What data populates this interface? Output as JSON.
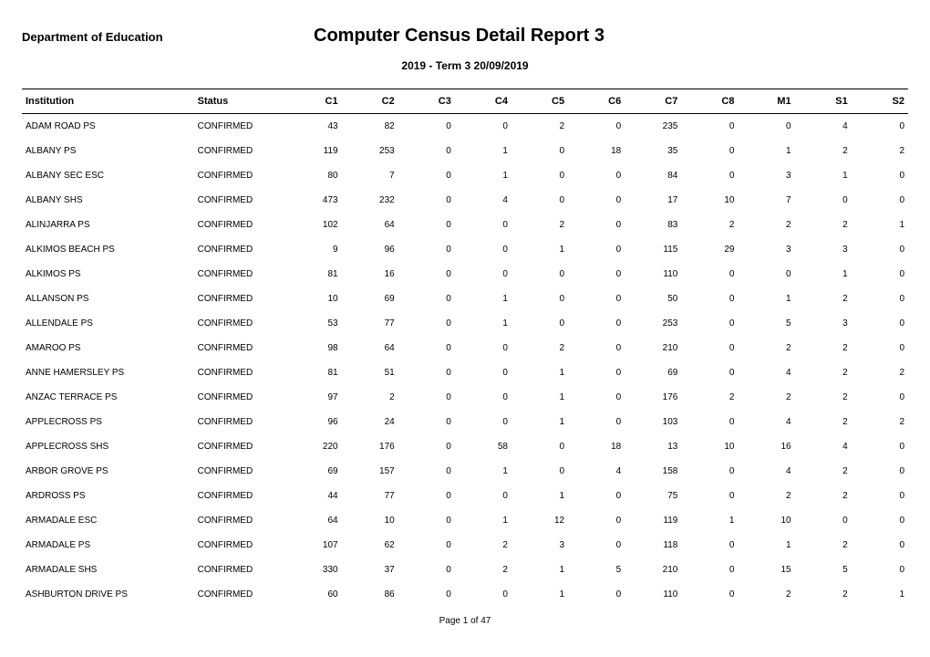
{
  "header": {
    "department": "Department of Education",
    "title": "Computer Census Detail Report 3",
    "subtitle": "2019 - Term 3   20/09/2019"
  },
  "table": {
    "columns": [
      "Institution",
      "Status",
      "C1",
      "C2",
      "C3",
      "C4",
      "C5",
      "C6",
      "C7",
      "C8",
      "M1",
      "S1",
      "S2"
    ],
    "rows": [
      [
        "ADAM ROAD PS",
        "CONFIRMED",
        43,
        82,
        0,
        0,
        2,
        0,
        235,
        0,
        0,
        4,
        0
      ],
      [
        "ALBANY PS",
        "CONFIRMED",
        119,
        253,
        0,
        1,
        0,
        18,
        35,
        0,
        1,
        2,
        2
      ],
      [
        "ALBANY SEC ESC",
        "CONFIRMED",
        80,
        7,
        0,
        1,
        0,
        0,
        84,
        0,
        3,
        1,
        0
      ],
      [
        "ALBANY SHS",
        "CONFIRMED",
        473,
        232,
        0,
        4,
        0,
        0,
        17,
        10,
        7,
        0,
        0
      ],
      [
        "ALINJARRA PS",
        "CONFIRMED",
        102,
        64,
        0,
        0,
        2,
        0,
        83,
        2,
        2,
        2,
        1
      ],
      [
        "ALKIMOS BEACH PS",
        "CONFIRMED",
        9,
        96,
        0,
        0,
        1,
        0,
        115,
        29,
        3,
        3,
        0
      ],
      [
        "ALKIMOS PS",
        "CONFIRMED",
        81,
        16,
        0,
        0,
        0,
        0,
        110,
        0,
        0,
        1,
        0
      ],
      [
        "ALLANSON PS",
        "CONFIRMED",
        10,
        69,
        0,
        1,
        0,
        0,
        50,
        0,
        1,
        2,
        0
      ],
      [
        "ALLENDALE PS",
        "CONFIRMED",
        53,
        77,
        0,
        1,
        0,
        0,
        253,
        0,
        5,
        3,
        0
      ],
      [
        "AMAROO PS",
        "CONFIRMED",
        98,
        64,
        0,
        0,
        2,
        0,
        210,
        0,
        2,
        2,
        0
      ],
      [
        "ANNE HAMERSLEY PS",
        "CONFIRMED",
        81,
        51,
        0,
        0,
        1,
        0,
        69,
        0,
        4,
        2,
        2
      ],
      [
        "ANZAC TERRACE PS",
        "CONFIRMED",
        97,
        2,
        0,
        0,
        1,
        0,
        176,
        2,
        2,
        2,
        0
      ],
      [
        "APPLECROSS PS",
        "CONFIRMED",
        96,
        24,
        0,
        0,
        1,
        0,
        103,
        0,
        4,
        2,
        2
      ],
      [
        "APPLECROSS SHS",
        "CONFIRMED",
        220,
        176,
        0,
        58,
        0,
        18,
        13,
        10,
        16,
        4,
        0
      ],
      [
        "ARBOR GROVE PS",
        "CONFIRMED",
        69,
        157,
        0,
        1,
        0,
        4,
        158,
        0,
        4,
        2,
        0
      ],
      [
        "ARDROSS PS",
        "CONFIRMED",
        44,
        77,
        0,
        0,
        1,
        0,
        75,
        0,
        2,
        2,
        0
      ],
      [
        "ARMADALE ESC",
        "CONFIRMED",
        64,
        10,
        0,
        1,
        12,
        0,
        119,
        1,
        10,
        0,
        0
      ],
      [
        "ARMADALE PS",
        "CONFIRMED",
        107,
        62,
        0,
        2,
        3,
        0,
        118,
        0,
        1,
        2,
        0
      ],
      [
        "ARMADALE SHS",
        "CONFIRMED",
        330,
        37,
        0,
        2,
        1,
        5,
        210,
        0,
        15,
        5,
        0
      ],
      [
        "ASHBURTON DRIVE PS",
        "CONFIRMED",
        60,
        86,
        0,
        0,
        1,
        0,
        110,
        0,
        2,
        2,
        1
      ]
    ]
  },
  "footer": {
    "page": "Page 1 of 47"
  }
}
